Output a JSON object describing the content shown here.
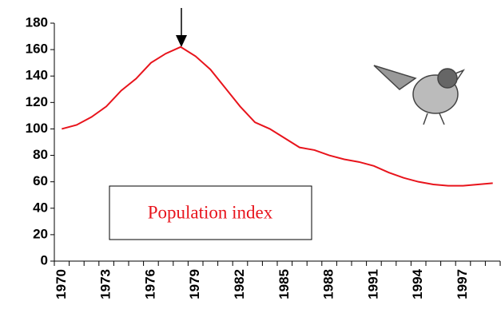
{
  "chart_data": {
    "type": "line",
    "categories": [
      "1970",
      null,
      null,
      "1973",
      null,
      null,
      "1976",
      null,
      null,
      "1979",
      null,
      null,
      "1982",
      null,
      null,
      "1985",
      null,
      null,
      "1988",
      null,
      null,
      "1991",
      null,
      null,
      "1994",
      null,
      null,
      "1997",
      null,
      null
    ],
    "series": [
      {
        "name": "Population index",
        "color": "#e8141c",
        "values": [
          100,
          103,
          109,
          117,
          129,
          138,
          150,
          157,
          162,
          155,
          145,
          131,
          117,
          105,
          100,
          93,
          86,
          84,
          80,
          77,
          75,
          72,
          67,
          63,
          60,
          58,
          57,
          57,
          58,
          59
        ]
      }
    ],
    "ylim": [
      0,
      180
    ],
    "yticks": [
      0,
      20,
      40,
      60,
      80,
      100,
      120,
      140,
      160,
      180
    ]
  }
}
